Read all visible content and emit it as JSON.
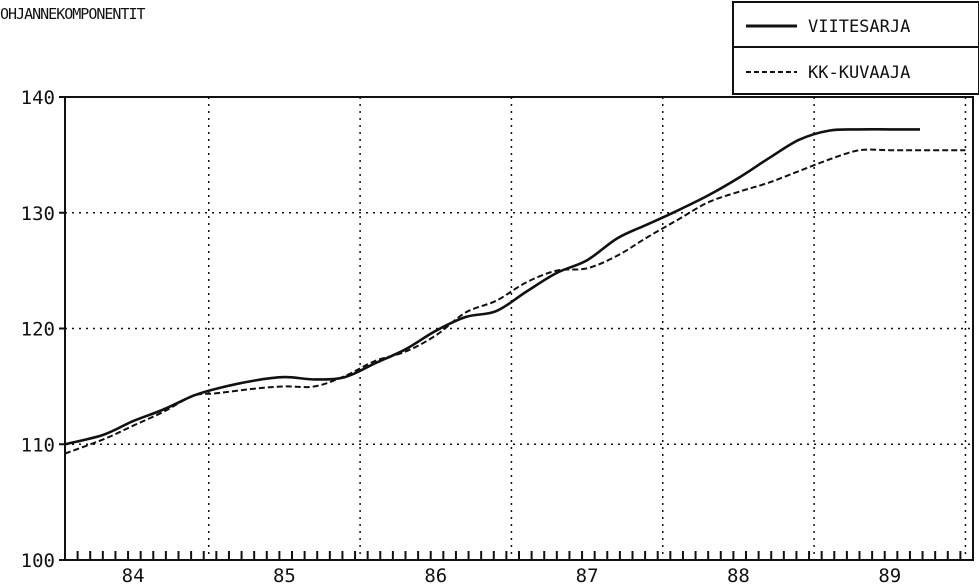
{
  "chart_data": {
    "type": "line",
    "title": "OHJANNEKOMPONENTIT",
    "xlabel": "",
    "ylabel": "",
    "x_tick_labels": [
      "84",
      "85",
      "86",
      "87",
      "88",
      "89"
    ],
    "y_ticks": [
      100,
      110,
      120,
      130,
      140
    ],
    "xlim": [
      83.55,
      89.55
    ],
    "ylim": [
      100,
      140
    ],
    "grid": true,
    "legend_position": "top-right",
    "series": [
      {
        "name": "VIITESARJA",
        "style": "solid",
        "color": "#111111",
        "x": [
          83.55,
          83.8,
          84.0,
          84.2,
          84.4,
          84.55,
          84.8,
          85.0,
          85.2,
          85.4,
          85.6,
          85.8,
          86.0,
          86.2,
          86.4,
          86.6,
          86.8,
          87.0,
          87.2,
          87.4,
          87.6,
          87.8,
          88.0,
          88.2,
          88.4,
          88.6,
          88.8,
          89.0,
          89.2
        ],
        "y": [
          110.0,
          110.8,
          112.0,
          113.0,
          114.2,
          114.8,
          115.5,
          115.8,
          115.6,
          115.8,
          117.0,
          118.2,
          119.8,
          121.0,
          121.5,
          123.2,
          124.8,
          125.9,
          127.8,
          129.0,
          130.2,
          131.5,
          133.0,
          134.7,
          136.3,
          137.1,
          137.2,
          137.2,
          137.2
        ]
      },
      {
        "name": "KK-KUVAAJA",
        "style": "dashed",
        "color": "#111111",
        "x": [
          83.55,
          83.8,
          84.0,
          84.2,
          84.4,
          84.55,
          84.8,
          85.0,
          85.2,
          85.4,
          85.6,
          85.8,
          86.0,
          86.2,
          86.4,
          86.6,
          86.8,
          87.0,
          87.2,
          87.4,
          87.6,
          87.8,
          88.0,
          88.2,
          88.4,
          88.6,
          88.8,
          89.0,
          89.2,
          89.4,
          89.5
        ],
        "y": [
          109.2,
          110.4,
          111.6,
          112.8,
          114.2,
          114.4,
          114.8,
          115.0,
          115.0,
          115.9,
          117.2,
          118.0,
          119.4,
          121.4,
          122.4,
          124.0,
          125.0,
          125.2,
          126.3,
          127.9,
          129.4,
          130.9,
          131.8,
          132.6,
          133.6,
          134.6,
          135.4,
          135.4,
          135.4,
          135.4,
          135.4
        ]
      }
    ]
  }
}
